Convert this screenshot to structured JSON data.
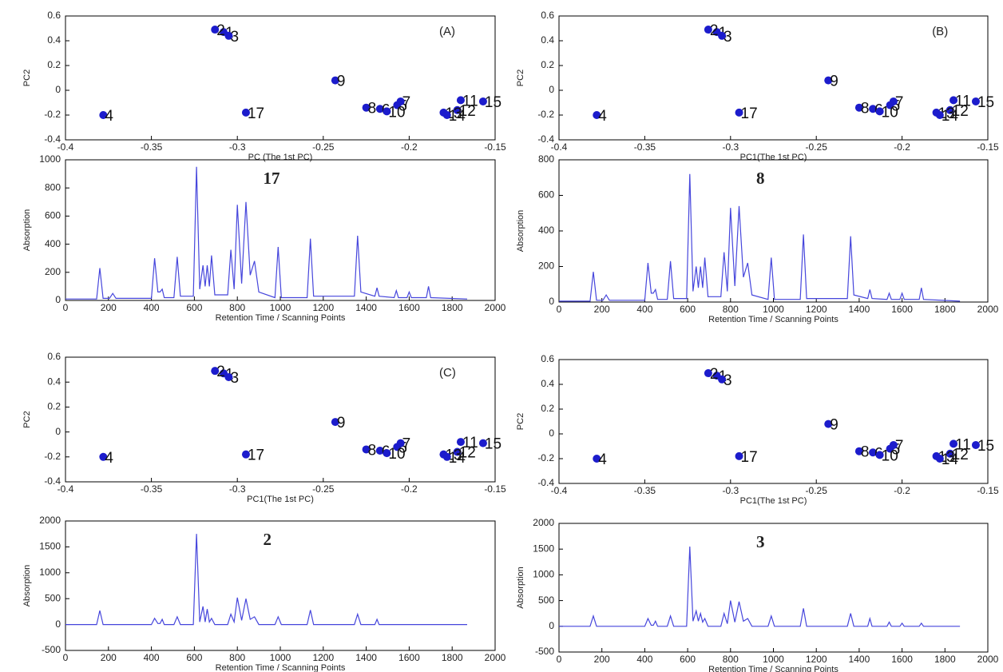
{
  "chart_data": [
    {
      "type": "scatter",
      "annotation": "(A)",
      "xlabel": "PC (The 1st PC)",
      "ylabel": "PC2",
      "x": [
        -0.308,
        -0.313,
        -0.305,
        -0.378,
        -0.207,
        -0.217,
        -0.205,
        -0.225,
        -0.243,
        -0.213,
        -0.17,
        -0.172,
        -0.18,
        -0.178,
        -0.157,
        -0.295
      ],
      "values": [
        0.47,
        0.49,
        0.44,
        -0.2,
        -0.12,
        -0.15,
        -0.09,
        -0.14,
        0.08,
        -0.17,
        -0.08,
        -0.16,
        -0.18,
        -0.2,
        -0.09,
        -0.18
      ],
      "labels": [
        "1",
        "2",
        "3",
        "4",
        "5",
        "6",
        "7",
        "8",
        "9",
        "10",
        "11",
        "12",
        "13",
        "14",
        "15",
        "17"
      ],
      "color": "#1c1ccc",
      "xlim": [
        -0.4,
        -0.15
      ],
      "ylim": [
        -0.4,
        0.6
      ],
      "xticks": [
        -0.4,
        -0.35,
        -0.3,
        -0.25,
        -0.2,
        -0.15
      ],
      "yticks": [
        -0.4,
        -0.2,
        0,
        0.2,
        0.4,
        0.6
      ]
    },
    {
      "type": "line",
      "annotation": "17",
      "xlabel": "Retention Time / Scanning Points",
      "ylabel": "Absorption",
      "x": [
        0,
        145,
        160,
        175,
        205,
        220,
        235,
        400,
        415,
        430,
        440,
        450,
        460,
        505,
        520,
        535,
        595,
        610,
        625,
        640,
        650,
        660,
        670,
        680,
        695,
        755,
        770,
        785,
        800,
        820,
        840,
        860,
        880,
        900,
        975,
        990,
        1005,
        1125,
        1140,
        1155,
        1345,
        1360,
        1375,
        1440,
        1450,
        1460,
        1530,
        1540,
        1550,
        1590,
        1600,
        1610,
        1680,
        1690,
        1700,
        1870
      ],
      "values": [
        10,
        10,
        230,
        15,
        15,
        50,
        15,
        15,
        300,
        60,
        60,
        80,
        20,
        20,
        310,
        30,
        30,
        950,
        80,
        250,
        100,
        250,
        100,
        320,
        40,
        40,
        360,
        80,
        680,
        120,
        700,
        180,
        280,
        60,
        20,
        380,
        20,
        20,
        440,
        30,
        30,
        460,
        60,
        30,
        90,
        30,
        20,
        70,
        20,
        20,
        60,
        20,
        20,
        100,
        20,
        10
      ],
      "color": "#4646dc",
      "xlim": [
        0,
        2000
      ],
      "ylim": [
        0,
        1000
      ],
      "xticks": [
        0,
        200,
        400,
        600,
        800,
        1000,
        1200,
        1400,
        1600,
        1800,
        2000
      ],
      "yticks": [
        0,
        200,
        400,
        600,
        800,
        1000
      ]
    },
    {
      "type": "scatter",
      "annotation": "(B)",
      "xlabel": "PC1(The 1st PC)",
      "ylabel": "PC2",
      "x": [
        -0.308,
        -0.313,
        -0.305,
        -0.378,
        -0.207,
        -0.217,
        -0.205,
        -0.225,
        -0.243,
        -0.213,
        -0.17,
        -0.172,
        -0.18,
        -0.178,
        -0.157,
        -0.295
      ],
      "values": [
        0.47,
        0.49,
        0.44,
        -0.2,
        -0.12,
        -0.15,
        -0.09,
        -0.14,
        0.08,
        -0.17,
        -0.08,
        -0.16,
        -0.18,
        -0.2,
        -0.09,
        -0.18
      ],
      "labels": [
        "1",
        "2",
        "3",
        "4",
        "5",
        "6",
        "7",
        "8",
        "9",
        "10",
        "11",
        "12",
        "13",
        "14",
        "15",
        "17"
      ],
      "color": "#1c1ccc",
      "xlim": [
        -0.4,
        -0.15
      ],
      "ylim": [
        -0.4,
        0.6
      ],
      "xticks": [
        -0.4,
        -0.35,
        -0.3,
        -0.25,
        -0.2,
        -0.15
      ],
      "yticks": [
        -0.4,
        -0.2,
        0,
        0.2,
        0.4,
        0.6
      ]
    },
    {
      "type": "line",
      "annotation": "8",
      "xlabel": "Retention Time / Scanning Points",
      "ylabel": "Absorption",
      "x": [
        0,
        145,
        160,
        175,
        205,
        220,
        235,
        400,
        415,
        430,
        440,
        450,
        460,
        505,
        520,
        535,
        595,
        610,
        625,
        640,
        650,
        660,
        670,
        680,
        695,
        755,
        770,
        785,
        800,
        820,
        840,
        860,
        880,
        900,
        975,
        990,
        1005,
        1125,
        1140,
        1155,
        1345,
        1360,
        1375,
        1440,
        1450,
        1460,
        1530,
        1540,
        1550,
        1590,
        1600,
        1610,
        1680,
        1690,
        1700,
        1870
      ],
      "values": [
        5,
        5,
        170,
        10,
        10,
        40,
        10,
        10,
        220,
        50,
        50,
        70,
        15,
        15,
        230,
        20,
        20,
        720,
        60,
        200,
        80,
        200,
        80,
        250,
        30,
        30,
        280,
        60,
        530,
        90,
        540,
        140,
        220,
        40,
        15,
        250,
        15,
        15,
        380,
        20,
        20,
        370,
        40,
        20,
        70,
        20,
        15,
        50,
        15,
        15,
        50,
        15,
        15,
        80,
        15,
        5
      ],
      "color": "#4646dc",
      "xlim": [
        0,
        2000
      ],
      "ylim": [
        0,
        800
      ],
      "xticks": [
        0,
        200,
        400,
        600,
        800,
        1000,
        1200,
        1400,
        1600,
        1800,
        2000
      ],
      "yticks": [
        0,
        200,
        400,
        600,
        800
      ]
    },
    {
      "type": "scatter",
      "annotation": "(C)",
      "xlabel": "PC1(The 1st PC)",
      "ylabel": "PC2",
      "x": [
        -0.308,
        -0.313,
        -0.305,
        -0.378,
        -0.207,
        -0.217,
        -0.205,
        -0.225,
        -0.243,
        -0.213,
        -0.17,
        -0.172,
        -0.18,
        -0.178,
        -0.157,
        -0.295
      ],
      "values": [
        0.47,
        0.49,
        0.44,
        -0.2,
        -0.12,
        -0.15,
        -0.09,
        -0.14,
        0.08,
        -0.17,
        -0.08,
        -0.16,
        -0.18,
        -0.2,
        -0.09,
        -0.18
      ],
      "labels": [
        "1",
        "2",
        "3",
        "4",
        "5",
        "6",
        "7",
        "8",
        "9",
        "10",
        "11",
        "12",
        "13",
        "14",
        "15",
        "17"
      ],
      "color": "#1c1ccc",
      "xlim": [
        -0.4,
        -0.15
      ],
      "ylim": [
        -0.4,
        0.6
      ],
      "xticks": [
        -0.4,
        -0.35,
        -0.3,
        -0.25,
        -0.2,
        -0.15
      ],
      "yticks": [
        -0.4,
        -0.2,
        0,
        0.2,
        0.4,
        0.6
      ]
    },
    {
      "type": "line",
      "annotation": "2",
      "xlabel": "Retention Time / Scanning Points",
      "ylabel": "Absorption",
      "x": [
        0,
        145,
        160,
        175,
        205,
        220,
        235,
        400,
        415,
        430,
        440,
        450,
        460,
        505,
        520,
        535,
        595,
        610,
        625,
        640,
        650,
        660,
        670,
        680,
        695,
        755,
        770,
        785,
        800,
        820,
        840,
        860,
        880,
        900,
        975,
        990,
        1005,
        1125,
        1140,
        1155,
        1345,
        1360,
        1375,
        1440,
        1450,
        1460,
        1530,
        1540,
        1550,
        1590,
        1600,
        1610,
        1680,
        1690,
        1700,
        1870
      ],
      "values": [
        0,
        0,
        270,
        0,
        0,
        0,
        0,
        0,
        120,
        20,
        20,
        100,
        0,
        0,
        150,
        0,
        0,
        1750,
        50,
        350,
        50,
        300,
        50,
        120,
        0,
        0,
        200,
        50,
        520,
        80,
        500,
        100,
        150,
        0,
        0,
        150,
        0,
        0,
        280,
        0,
        0,
        200,
        0,
        0,
        100,
        0,
        0,
        0,
        0,
        0,
        0,
        0,
        0,
        0,
        0,
        0
      ],
      "color": "#4646dc",
      "xlim": [
        0,
        2000
      ],
      "ylim": [
        -500,
        2000
      ],
      "xticks": [
        0,
        200,
        400,
        600,
        800,
        1000,
        1200,
        1400,
        1600,
        1800,
        2000
      ],
      "yticks": [
        -500,
        0,
        500,
        1000,
        1500,
        2000
      ]
    },
    {
      "type": "scatter",
      "xlabel": "PC1(The 1st PC)",
      "ylabel": "PC2",
      "x": [
        -0.308,
        -0.313,
        -0.305,
        -0.378,
        -0.207,
        -0.217,
        -0.205,
        -0.225,
        -0.243,
        -0.213,
        -0.17,
        -0.172,
        -0.18,
        -0.178,
        -0.157,
        -0.295
      ],
      "values": [
        0.47,
        0.49,
        0.44,
        -0.2,
        -0.12,
        -0.15,
        -0.09,
        -0.14,
        0.08,
        -0.17,
        -0.08,
        -0.16,
        -0.18,
        -0.2,
        -0.09,
        -0.18
      ],
      "labels": [
        "1",
        "2",
        "3",
        "4",
        "5",
        "6",
        "7",
        "8",
        "9",
        "10",
        "11",
        "12",
        "13",
        "14",
        "15",
        "17"
      ],
      "color": "#1c1ccc",
      "xlim": [
        -0.4,
        -0.15
      ],
      "ylim": [
        -0.4,
        0.6
      ],
      "xticks": [
        -0.4,
        -0.35,
        -0.3,
        -0.25,
        -0.2,
        -0.15
      ],
      "yticks": [
        -0.4,
        -0.2,
        0,
        0.2,
        0.4,
        0.6
      ]
    },
    {
      "type": "line",
      "annotation": "3",
      "xlabel": "Retention Time / Scanning Points",
      "ylabel": "Absorption",
      "x": [
        0,
        145,
        160,
        175,
        205,
        220,
        235,
        400,
        415,
        430,
        440,
        450,
        460,
        505,
        520,
        535,
        595,
        610,
        625,
        640,
        650,
        660,
        670,
        680,
        695,
        755,
        770,
        785,
        800,
        820,
        840,
        860,
        880,
        900,
        975,
        990,
        1005,
        1125,
        1140,
        1155,
        1345,
        1360,
        1375,
        1440,
        1450,
        1460,
        1530,
        1540,
        1550,
        1590,
        1600,
        1610,
        1680,
        1690,
        1700,
        1870
      ],
      "values": [
        0,
        0,
        200,
        0,
        0,
        0,
        0,
        0,
        150,
        20,
        20,
        100,
        0,
        0,
        200,
        0,
        0,
        1550,
        100,
        300,
        100,
        250,
        80,
        150,
        0,
        0,
        250,
        50,
        500,
        80,
        480,
        100,
        150,
        0,
        0,
        200,
        0,
        0,
        350,
        0,
        0,
        250,
        0,
        0,
        150,
        0,
        0,
        80,
        0,
        0,
        60,
        0,
        0,
        60,
        0,
        0
      ],
      "color": "#4646dc",
      "xlim": [
        0,
        2000
      ],
      "ylim": [
        -500,
        2000
      ],
      "xticks": [
        0,
        200,
        400,
        600,
        800,
        1000,
        1200,
        1400,
        1600,
        1800,
        2000
      ],
      "yticks": [
        -500,
        0,
        500,
        1000,
        1500,
        2000
      ]
    }
  ]
}
